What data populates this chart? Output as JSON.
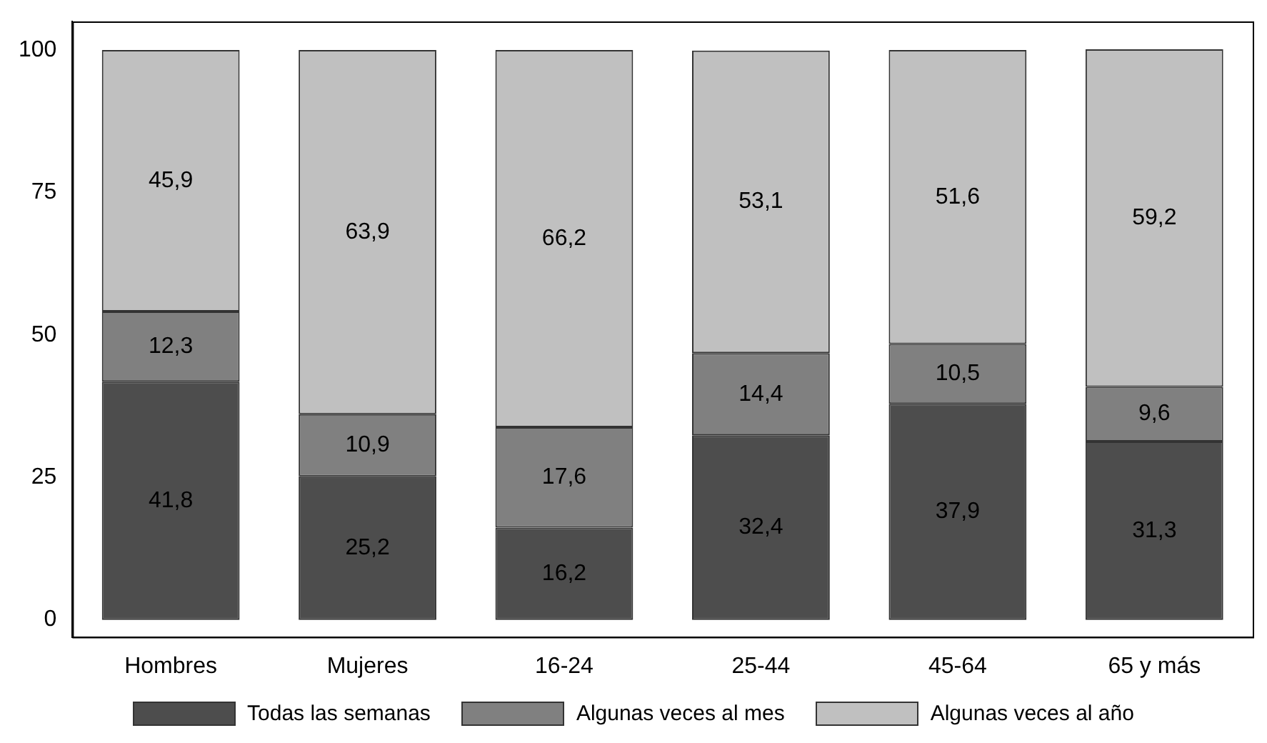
{
  "chart_data": {
    "type": "bar",
    "stacked": true,
    "categories": [
      "Hombres",
      "Mujeres",
      "16-24",
      "25-44",
      "45-64",
      "65 y más"
    ],
    "series": [
      {
        "name": "Todas las semanas",
        "color": "#4d4d4d",
        "values": [
          41.8,
          25.2,
          16.2,
          32.4,
          37.9,
          31.3
        ],
        "value_labels": [
          "41,8",
          "25,2",
          "16,2",
          "32,4",
          "37,9",
          "31,3"
        ]
      },
      {
        "name": "Algunas veces al mes",
        "color": "#808080",
        "values": [
          12.3,
          10.9,
          17.6,
          14.4,
          10.5,
          9.6
        ],
        "value_labels": [
          "12,3",
          "10,9",
          "17,6",
          "14,4",
          "10,5",
          "9,6"
        ]
      },
      {
        "name": "Algunas veces al año",
        "color": "#c0c0c0",
        "values": [
          45.9,
          63.9,
          66.2,
          53.1,
          51.6,
          59.2
        ],
        "value_labels": [
          "45,9",
          "63,9",
          "66,2",
          "53,1",
          "51,6",
          "59,2"
        ]
      }
    ],
    "ylim": [
      -3,
      105
    ],
    "yticks": [
      0,
      25,
      50,
      75,
      100
    ],
    "grid": false,
    "legend": "bottom"
  }
}
